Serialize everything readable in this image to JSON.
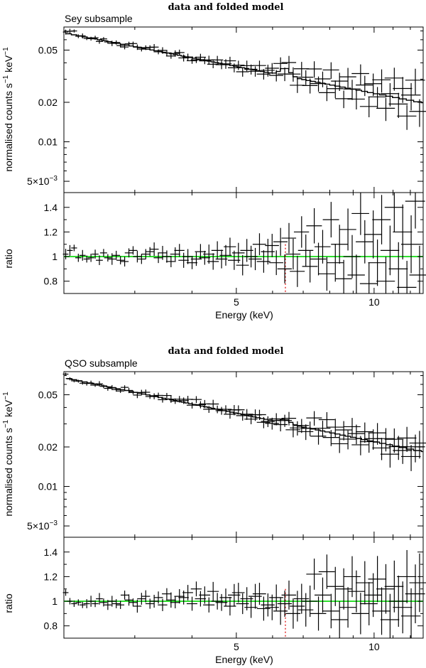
{
  "colors": {
    "axes": "#000000",
    "data": "#000000",
    "unity_line": "#22dd22",
    "line_marker": "#dd1111"
  },
  "chart_data": [
    {
      "type": "line",
      "title": "data and folded model",
      "subtitle": "Sey subsample",
      "xlabel": "Energy (keV)",
      "xlim": [
        2.1,
        12.8
      ],
      "xticks": [
        {
          "value": 5,
          "label": "5"
        },
        {
          "value": 10,
          "label": "10"
        }
      ],
      "spectrum": {
        "ylabel_main": "normalised counts s",
        "ylabel_sup1": "−1",
        "ylabel_mid": " keV",
        "ylabel_sup2": "−1",
        "yscale": "log",
        "ylim": [
          0.0041,
          0.075
        ],
        "yticks": [
          {
            "value": 0.005,
            "label": "5×10",
            "sup": "−3"
          },
          {
            "value": 0.01,
            "label": "0.01"
          },
          {
            "value": 0.02,
            "label": "0.02"
          },
          {
            "value": 0.05,
            "label": "0.05"
          }
        ],
        "norm_at_2keV": 0.07,
        "slope": 0.68,
        "line_energy": 6.4,
        "line_width": 0.16,
        "line_amp": 0.15
      },
      "ratio": {
        "ylabel": "ratio",
        "ylim": [
          0.7,
          1.52
        ],
        "yticks": [
          {
            "value": 0.8,
            "label": "0.8"
          },
          {
            "value": 1,
            "label": "1"
          },
          {
            "value": 1.2,
            "label": "1.2"
          },
          {
            "value": 1.4,
            "label": "1.4"
          }
        ],
        "points": [
          1.02,
          1.05,
          1.07,
          0.99,
          1.01,
          0.98,
          0.99,
          1.02,
          0.97,
          1.03,
          0.99,
          0.98,
          1.01,
          0.97,
          0.96,
          1.03,
          1.05,
          1.0,
          0.98,
          1.02,
          1.04,
          1.06,
          0.99,
          1.03,
          1.0,
          0.96,
          1.02,
          1.05,
          0.97,
          1.0,
          0.95,
          0.98,
          1.04,
          0.99,
          1.02,
          0.96,
          1.05,
          0.98,
          1.01,
          1.08,
          0.97,
          1.03,
          0.93,
          1.05,
          1.0,
          0.98,
          1.1,
          0.96,
          1.04,
          1.09,
          0.95,
          1.12,
          0.9,
          1.15,
          1.02,
          0.88,
          1.2,
          1.05,
          0.92,
          1.25,
          0.98,
          1.08,
          0.86,
          1.3,
          0.95,
          1.1,
          0.82,
          1.22,
          1.0,
          0.85,
          1.35,
          1.12,
          0.78,
          1.18,
          0.95,
          1.3,
          0.8,
          1.05,
          1.4,
          0.9,
          1.2,
          0.75,
          1.1,
          1.45,
          0.85
        ],
        "marker_energy": 6.4
      }
    },
    {
      "type": "line",
      "title": "data and folded model",
      "subtitle": "QSO subsample",
      "xlabel": "Energy (keV)",
      "xlim": [
        2.1,
        12.8
      ],
      "xticks": [
        {
          "value": 5,
          "label": "5"
        },
        {
          "value": 10,
          "label": "10"
        }
      ],
      "spectrum": {
        "ylabel_main": "normalised counts s",
        "ylabel_sup1": "−1",
        "ylabel_mid": " keV",
        "ylabel_sup2": "−1",
        "yscale": "log",
        "ylim": [
          0.0041,
          0.075
        ],
        "yticks": [
          {
            "value": 0.005,
            "label": "5×10",
            "sup": "−3"
          },
          {
            "value": 0.01,
            "label": "0.01"
          },
          {
            "value": 0.02,
            "label": "0.02"
          },
          {
            "value": 0.05,
            "label": "0.05"
          }
        ],
        "norm_at_2keV": 0.07,
        "slope": 0.72,
        "line_energy": 6.4,
        "line_width": 0.16,
        "line_amp": 0.07
      },
      "ratio": {
        "ylabel": "ratio",
        "ylim": [
          0.7,
          1.52
        ],
        "yticks": [
          {
            "value": 0.8,
            "label": "0.8"
          },
          {
            "value": 1,
            "label": "1"
          },
          {
            "value": 1.2,
            "label": "1.2"
          },
          {
            "value": 1.4,
            "label": "1.4"
          }
        ],
        "points": [
          1.07,
          1.0,
          0.98,
          0.99,
          0.97,
          0.98,
          1.0,
          0.98,
          1.02,
          0.99,
          0.97,
          1.0,
          0.98,
          0.97,
          1.05,
          1.01,
          0.99,
          0.96,
          1.02,
          1.04,
          0.98,
          1.0,
          1.03,
          0.97,
          1.06,
          1.01,
          0.99,
          1.04,
          1.03,
          1.07,
          0.98,
          1.1,
          1.02,
          1.05,
          0.97,
          1.08,
          1.0,
          0.99,
          1.03,
          0.96,
          1.05,
          1.07,
          0.98,
          1.02,
          0.95,
          1.04,
          1.06,
          0.94,
          0.97,
          0.95,
          1.03,
          0.92,
          0.98,
          1.05,
          0.9,
          0.96,
          1.02,
          0.93,
          1.0,
          1.22,
          0.9,
          1.05,
          1.24,
          0.92,
          1.12,
          0.85,
          1.1,
          0.95,
          1.2,
          1.08,
          0.9,
          1.15,
          0.98,
          1.05,
          1.18,
          0.92,
          1.1,
          0.85,
          1.12,
          1.0,
          0.95,
          1.2,
          0.88,
          1.06,
          1.15
        ],
        "marker_energy": 6.4
      }
    }
  ]
}
